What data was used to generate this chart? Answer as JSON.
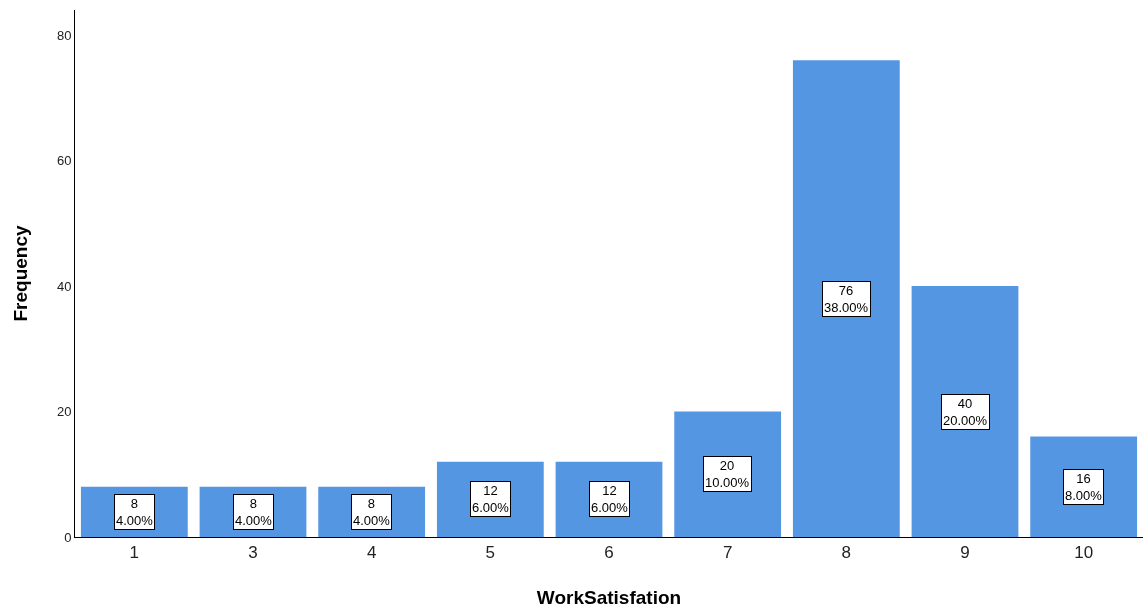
{
  "chart_data": {
    "type": "bar",
    "xlabel": "WorkSatisfation",
    "ylabel": "Frequency",
    "categories": [
      "1",
      "3",
      "4",
      "5",
      "6",
      "7",
      "8",
      "9",
      "10"
    ],
    "values": [
      8,
      8,
      8,
      12,
      12,
      20,
      76,
      40,
      16
    ],
    "value_labels": [
      "8\n4.00%",
      "8\n4.00%",
      "8\n4.00%",
      "12\n6.00%",
      "12\n6.00%",
      "20\n10.00%",
      "76\n38.00%",
      "40\n20.00%",
      "16\n8.00%"
    ],
    "color": "#5596e3",
    "ylim": [
      0,
      84
    ],
    "yticks": [
      0,
      20,
      40,
      60,
      80
    ],
    "grid": false
  }
}
